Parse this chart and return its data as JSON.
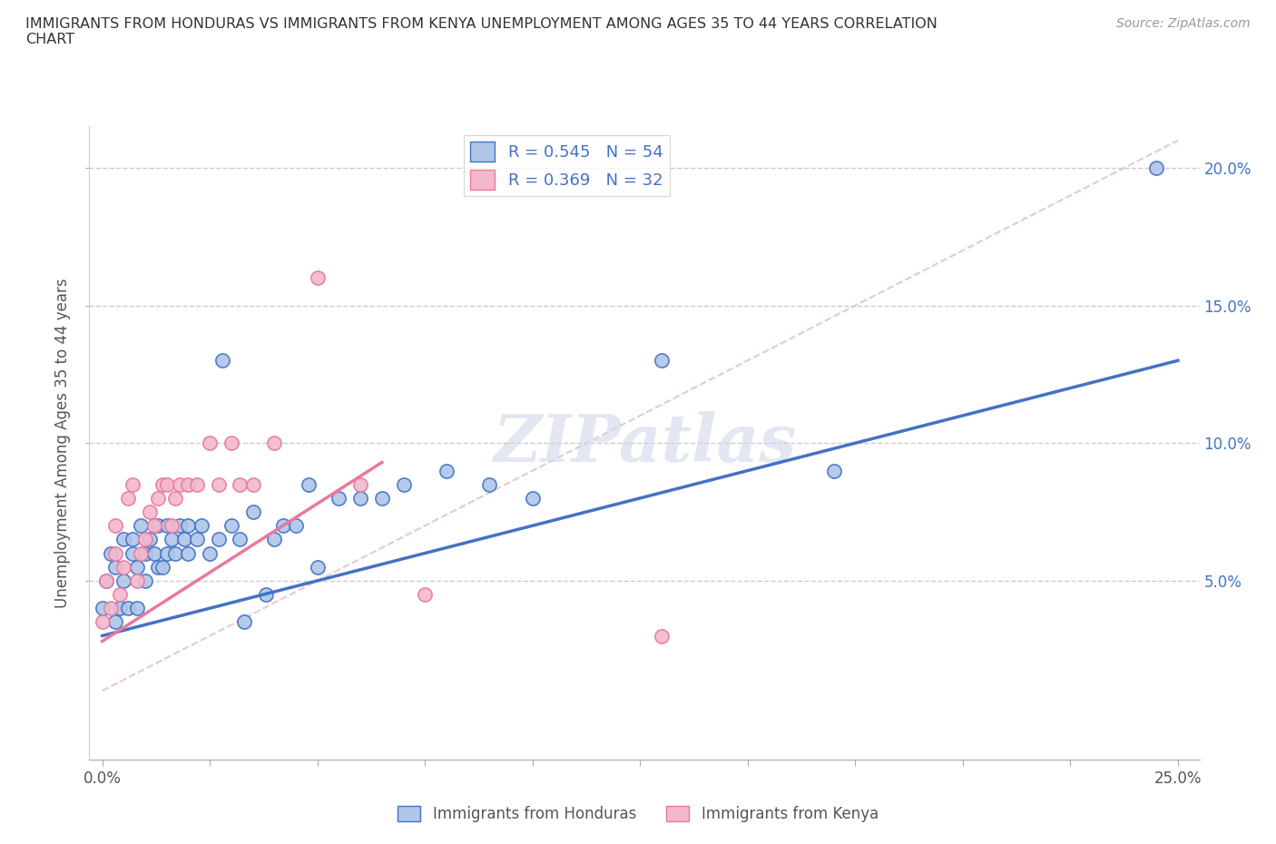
{
  "title": "IMMIGRANTS FROM HONDURAS VS IMMIGRANTS FROM KENYA UNEMPLOYMENT AMONG AGES 35 TO 44 YEARS CORRELATION\nCHART",
  "source": "Source: ZipAtlas.com",
  "ylabel": "Unemployment Among Ages 35 to 44 years",
  "xlim": [
    -0.003,
    0.255
  ],
  "ylim": [
    -0.015,
    0.215
  ],
  "xticks": [
    0.0,
    0.025,
    0.05,
    0.075,
    0.1,
    0.125,
    0.15,
    0.175,
    0.2,
    0.225,
    0.25
  ],
  "yticks": [
    0.05,
    0.1,
    0.15,
    0.2
  ],
  "ytick_labels": [
    "5.0%",
    "10.0%",
    "15.0%",
    "20.0%"
  ],
  "watermark": "ZIPatlas",
  "honduras_color": "#aec6e8",
  "kenya_color": "#f4b8cc",
  "honduras_edge_color": "#4472c4",
  "kenya_edge_color": "#e879a0",
  "honduras_line_color": "#4472c4",
  "kenya_line_color": "#e879a0",
  "trendline_color": "#e8b0c0",
  "R_honduras": 0.545,
  "N_honduras": 54,
  "R_kenya": 0.369,
  "N_kenya": 32,
  "honduras_points_x": [
    0.0,
    0.001,
    0.002,
    0.003,
    0.003,
    0.004,
    0.005,
    0.005,
    0.006,
    0.007,
    0.007,
    0.008,
    0.008,
    0.009,
    0.01,
    0.01,
    0.011,
    0.012,
    0.013,
    0.013,
    0.014,
    0.015,
    0.015,
    0.016,
    0.017,
    0.018,
    0.019,
    0.02,
    0.02,
    0.022,
    0.023,
    0.025,
    0.027,
    0.028,
    0.03,
    0.032,
    0.033,
    0.035,
    0.038,
    0.04,
    0.042,
    0.045,
    0.048,
    0.05,
    0.055,
    0.06,
    0.065,
    0.07,
    0.08,
    0.09,
    0.1,
    0.13,
    0.17,
    0.245
  ],
  "honduras_points_y": [
    0.04,
    0.05,
    0.06,
    0.035,
    0.055,
    0.04,
    0.05,
    0.065,
    0.04,
    0.06,
    0.065,
    0.04,
    0.055,
    0.07,
    0.05,
    0.06,
    0.065,
    0.06,
    0.055,
    0.07,
    0.055,
    0.06,
    0.07,
    0.065,
    0.06,
    0.07,
    0.065,
    0.06,
    0.07,
    0.065,
    0.07,
    0.06,
    0.065,
    0.13,
    0.07,
    0.065,
    0.035,
    0.075,
    0.045,
    0.065,
    0.07,
    0.07,
    0.085,
    0.055,
    0.08,
    0.08,
    0.08,
    0.085,
    0.09,
    0.085,
    0.08,
    0.13,
    0.09,
    0.2
  ],
  "kenya_points_x": [
    0.0,
    0.001,
    0.002,
    0.003,
    0.003,
    0.004,
    0.005,
    0.006,
    0.007,
    0.008,
    0.009,
    0.01,
    0.011,
    0.012,
    0.013,
    0.014,
    0.015,
    0.016,
    0.017,
    0.018,
    0.02,
    0.022,
    0.025,
    0.027,
    0.03,
    0.032,
    0.035,
    0.04,
    0.05,
    0.06,
    0.075,
    0.13
  ],
  "kenya_points_y": [
    0.035,
    0.05,
    0.04,
    0.06,
    0.07,
    0.045,
    0.055,
    0.08,
    0.085,
    0.05,
    0.06,
    0.065,
    0.075,
    0.07,
    0.08,
    0.085,
    0.085,
    0.07,
    0.08,
    0.085,
    0.085,
    0.085,
    0.1,
    0.085,
    0.1,
    0.085,
    0.085,
    0.1,
    0.16,
    0.085,
    0.045,
    0.03
  ]
}
